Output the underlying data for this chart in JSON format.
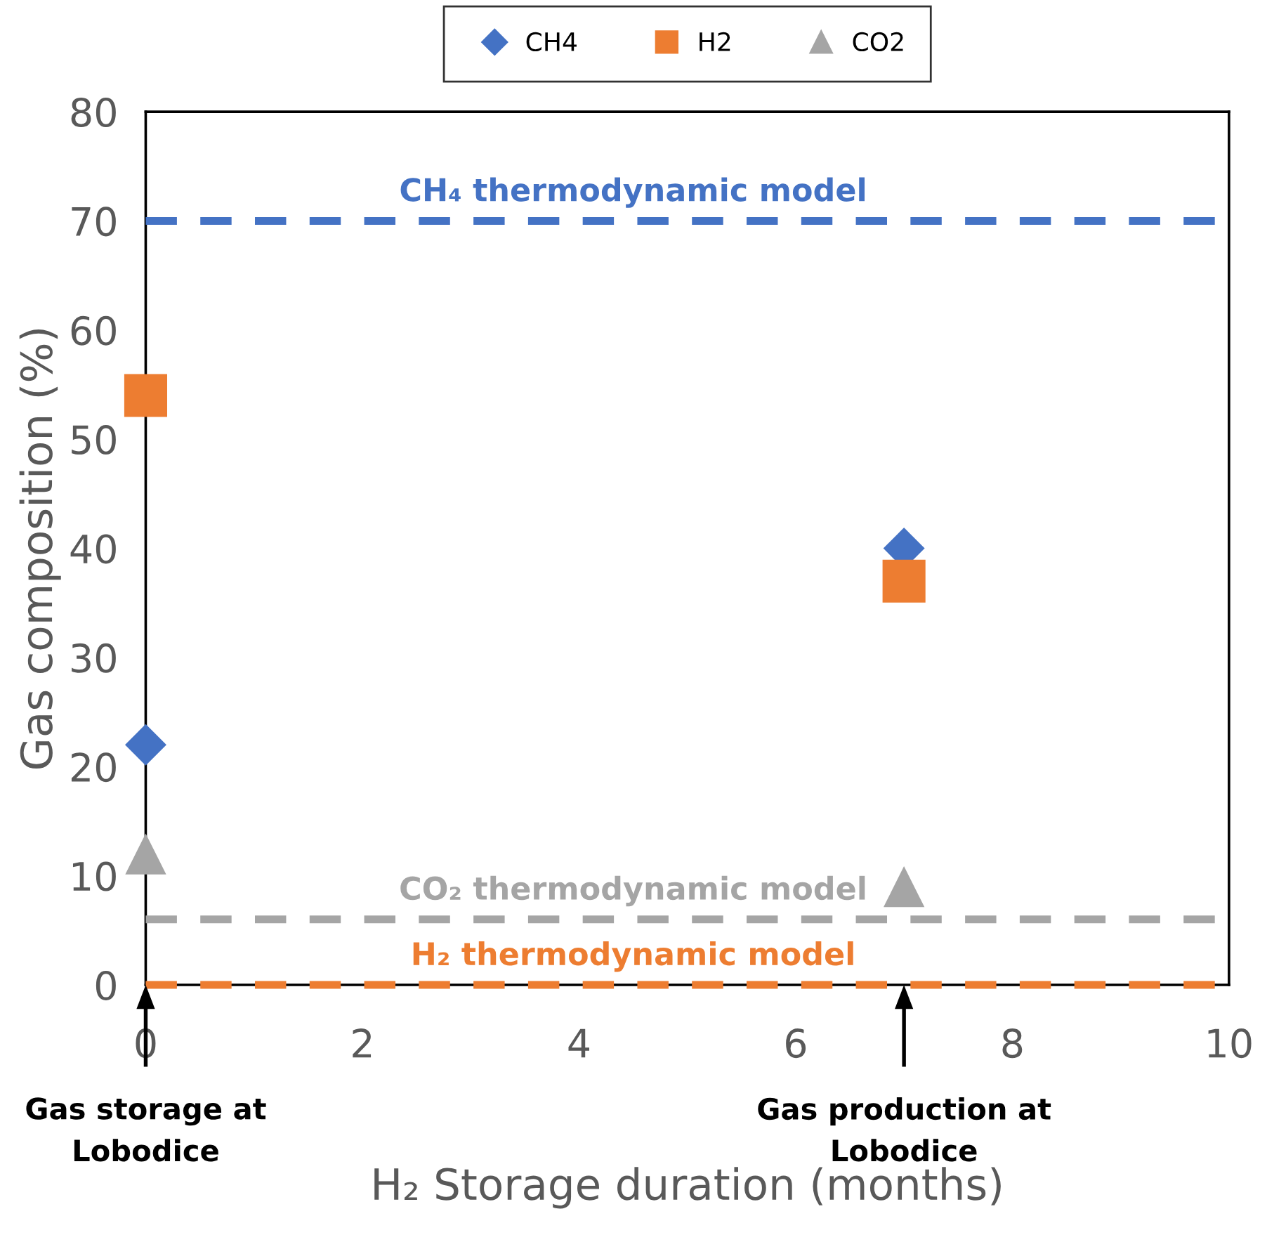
{
  "chart_data": {
    "type": "scatter",
    "xlabel": "H₂ Storage duration (months)",
    "ylabel": "Gas composition (%)",
    "x": [
      0,
      7
    ],
    "xlim": [
      0,
      10
    ],
    "ylim": [
      0,
      80
    ],
    "xticks": [
      0,
      2,
      4,
      6,
      8,
      10
    ],
    "yticks": [
      0,
      10,
      20,
      30,
      40,
      50,
      60,
      70,
      80
    ],
    "grid": false,
    "legend": "top",
    "series": [
      {
        "name": "CH4",
        "color": "#4472c4",
        "marker": "diamond",
        "values": [
          22,
          40
        ]
      },
      {
        "name": "H2",
        "color": "#ed7d31",
        "marker": "square",
        "values": [
          54,
          37
        ]
      },
      {
        "name": "CO2",
        "color": "#a5a5a5",
        "marker": "triangle",
        "values": [
          12,
          9
        ]
      }
    ],
    "ref_lines": [
      {
        "axis": "y",
        "value": 70,
        "label": "CH₄ thermodynamic model",
        "color": "#4472c4",
        "line_style": "dashed"
      },
      {
        "axis": "y",
        "value": 0,
        "label": "H₂ thermodynamic model",
        "color": "#ed7d31",
        "line_style": "dashed"
      },
      {
        "axis": "y",
        "value": 6,
        "label": "CO₂ thermodynamic model",
        "color": "#a5a5a5",
        "line_style": "dashed"
      }
    ],
    "annotations": [
      "Gas storage at\nLobodice",
      "Gas production at\nLobodice"
    ]
  }
}
